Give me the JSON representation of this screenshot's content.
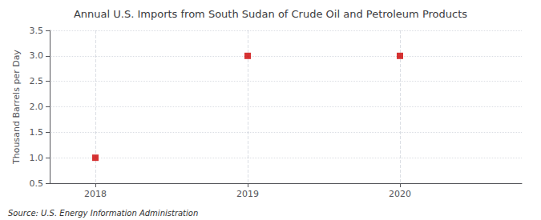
{
  "chart_data": {
    "type": "scatter",
    "title": "Annual U.S. Imports from South Sudan of Crude Oil and Petroleum Products",
    "y_label": "Thousand Barrels per Day",
    "annotations": [
      "Source: U.S. Energy Information Administration"
    ],
    "x": [
      2018,
      2019,
      2020
    ],
    "values": [
      1.0,
      3.0,
      3.0
    ],
    "color": "#cc0000",
    "marker": "square",
    "xlim": [
      2017.7,
      2020.8
    ],
    "xticks": [
      2018,
      2019,
      2020
    ],
    "ylim": [
      0.5,
      3.5
    ],
    "yticks": [
      0.5,
      {
        "value": 1.0,
        "label": "1.0"
      },
      1.5,
      {
        "value": 2.0,
        "label": "2.0"
      },
      2.5,
      {
        "value": 3.0,
        "label": "3.0"
      },
      3.5
    ],
    "grid": true
  }
}
